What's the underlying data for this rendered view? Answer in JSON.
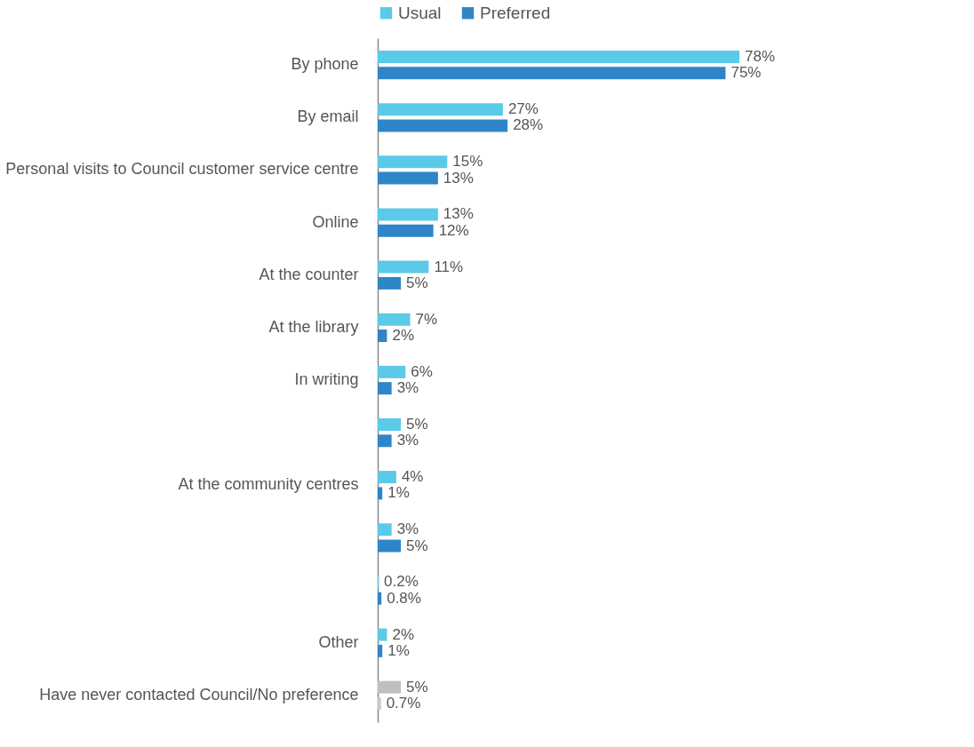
{
  "chart_data": {
    "type": "bar",
    "orientation": "horizontal",
    "legend": "top",
    "categories": [
      "By phone",
      "By email",
      "Personal visits to Council customer service centre",
      "Online",
      "At the counter",
      "At the library",
      "In writing",
      null,
      "At the community centres",
      null,
      null,
      "Other",
      "Have never contacted Council/No preference"
    ],
    "series": [
      {
        "name": "Usual",
        "color": "#5bc9e8",
        "colors": [
          "#5bc9e8",
          "#5bc9e8",
          "#5bc9e8",
          "#5bc9e8",
          "#5bc9e8",
          "#5bc9e8",
          "#5bc9e8",
          "#5bc9e8",
          "#5bc9e8",
          "#5bc9e8",
          "#5bc9e8",
          "#5bc9e8",
          "#bfbfbf"
        ],
        "values": [
          78,
          27,
          15,
          13,
          11,
          7,
          6,
          5,
          4,
          3,
          0.2,
          2,
          5
        ],
        "value_labels": [
          "78%",
          "27%",
          "15%",
          "13%",
          "11%",
          "7%",
          "6%",
          "5%",
          "4%",
          "3%",
          "0.2%",
          "2%",
          "5%"
        ]
      },
      {
        "name": "Preferred",
        "color": "#2e86c8",
        "colors": [
          "#2e86c8",
          "#2e86c8",
          "#2e86c8",
          "#2e86c8",
          "#2e86c8",
          "#2e86c8",
          "#2e86c8",
          "#2e86c8",
          "#2e86c8",
          "#2e86c8",
          "#2e86c8",
          "#2e86c8",
          "#c8c8c8"
        ],
        "values": [
          75,
          28,
          13,
          12,
          5,
          2,
          3,
          3,
          1,
          5,
          0.8,
          1,
          0.7
        ],
        "value_labels": [
          "75%",
          "28%",
          "13%",
          "12%",
          "5%",
          "2%",
          "3%",
          "3%",
          "1%",
          "5%",
          "0.8%",
          "1%",
          "0.7%"
        ]
      }
    ]
  }
}
